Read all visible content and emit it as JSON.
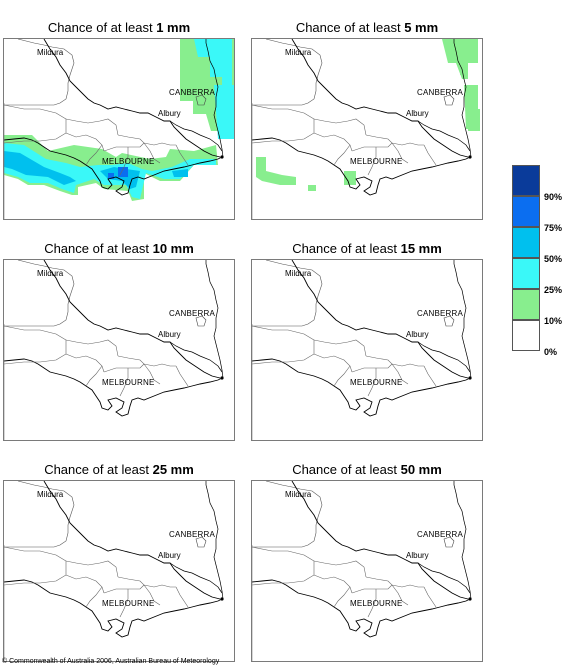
{
  "panels": [
    {
      "title_prefix": "Chance of at least ",
      "threshold": "1 mm"
    },
    {
      "title_prefix": "Chance of at least ",
      "threshold": "5 mm"
    },
    {
      "title_prefix": "Chance of at least ",
      "threshold": "10 mm"
    },
    {
      "title_prefix": "Chance of at least ",
      "threshold": "15 mm"
    },
    {
      "title_prefix": "Chance of at least ",
      "threshold": "25 mm"
    },
    {
      "title_prefix": "Chance of at least ",
      "threshold": "50 mm"
    }
  ],
  "places": {
    "mildura": "Mildura",
    "canberra": "CANBERRA",
    "albury": "Albury",
    "melbourne": "MELBOURNE"
  },
  "legend": {
    "levels": [
      {
        "label": "",
        "color": "#0a3b9a"
      },
      {
        "label": "90%",
        "color": "#0b6ef0"
      },
      {
        "label": "75%",
        "color": "#00c0ee"
      },
      {
        "label": "50%",
        "color": "#3af8f8"
      },
      {
        "label": "25%",
        "color": "#88ee8e"
      },
      {
        "label": "10%",
        "color": "#ffffff"
      }
    ],
    "bottom_label": "0%"
  },
  "copyright": "© Commonwealth of Australia 2006, Australian Bureau of Meteorology"
}
